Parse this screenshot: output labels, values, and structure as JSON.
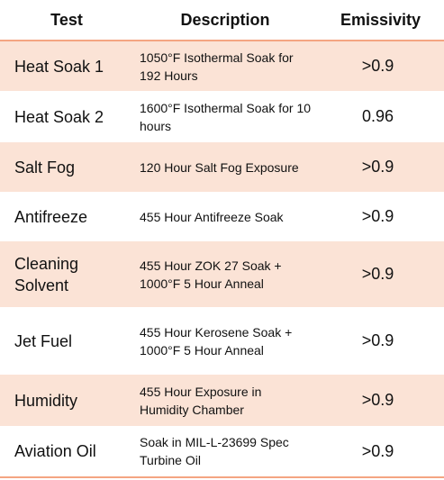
{
  "table": {
    "header": [
      "Test",
      "Description",
      "Emissivity"
    ],
    "rows": [
      [
        "Heat Soak 1",
        "1050°F Isothermal Soak for 192 Hours",
        ">0.9"
      ],
      [
        "Heat Soak 2",
        "1600°F Isothermal Soak for 10 hours",
        "0.96"
      ],
      [
        "Salt Fog",
        "120 Hour Salt Fog Exposure",
        ">0.9"
      ],
      [
        "Antifreeze",
        "455 Hour Antifreeze Soak",
        ">0.9"
      ],
      [
        "Cleaning Solvent",
        "455 Hour ZOK 27 Soak + 1000°F 5 Hour Anneal",
        ">0.9"
      ],
      [
        "Jet Fuel",
        "455 Hour Kerosene Soak + 1000°F 5 Hour Anneal",
        ">0.9"
      ],
      [
        "Humidity",
        "455 Hour Exposure in Humidity Chamber",
        ">0.9"
      ],
      [
        "Aviation Oil",
        "Soak in MIL-L-23699 Spec Turbine Oil",
        ">0.9"
      ]
    ]
  }
}
